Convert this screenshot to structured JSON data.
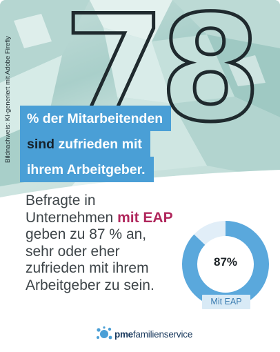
{
  "hero": {
    "big_number": "78",
    "photo_credit": "Bildnachweis: KI-generiert mit Adobe Firefly"
  },
  "label": {
    "line1": "% der Mitarbeitenden",
    "line2_dark": "sind",
    "line2_rest": " zufrieden mit",
    "line3": "ihrem Arbeitgeber."
  },
  "body": {
    "part1": "Befragte in Unternehmen ",
    "accent": "mit EAP",
    "part2": " geben zu 87 % an, sehr oder eher zufrieden mit ihrem Arbeitgeber zu sein."
  },
  "chart_data": {
    "type": "pie",
    "categories": [
      "Mit EAP"
    ],
    "values": [
      87
    ],
    "value_label": "87%",
    "tag": "Mit EAP",
    "max": 100
  },
  "footer": {
    "logo_pme": "pme",
    "logo_rest": "familienservice"
  },
  "colors": {
    "accent_blue": "#4a9fd6",
    "donut_fill": "#5aa8dc",
    "donut_track": "#e1eef8",
    "accent_text": "#b0275c"
  }
}
